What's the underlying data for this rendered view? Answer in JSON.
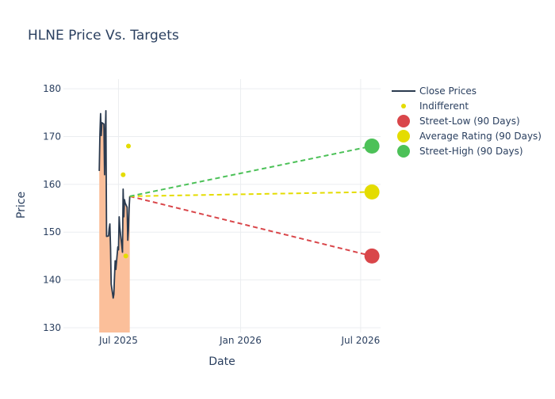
{
  "chart_data": {
    "type": "line",
    "title": "HLNE Price Vs. Targets",
    "xlabel": "Date",
    "ylabel": "Price",
    "xlim": [
      "2025-04-09",
      "2026-07-31"
    ],
    "ylim": [
      129,
      182
    ],
    "x_ticks": [
      {
        "date": "2025-07-01",
        "label": "Jul 2025"
      },
      {
        "date": "2026-01-01",
        "label": "Jan 2026"
      },
      {
        "date": "2026-07-01",
        "label": "Jul 2026"
      }
    ],
    "y_ticks": [
      130,
      140,
      150,
      160,
      170,
      180
    ],
    "grid": true,
    "legend_position": "top-right",
    "series": [
      {
        "name": "Close Prices",
        "kind": "line-area",
        "color": "#2a3a4f",
        "fill": "#fbbf9a",
        "points": [
          [
            "2025-06-02",
            162.8
          ],
          [
            "2025-06-03",
            170.5
          ],
          [
            "2025-06-04",
            174.8
          ],
          [
            "2025-06-05",
            170.2
          ],
          [
            "2025-06-06",
            172.9
          ],
          [
            "2025-06-09",
            172.6
          ],
          [
            "2025-06-10",
            162.0
          ],
          [
            "2025-06-11",
            170.3
          ],
          [
            "2025-06-12",
            175.4
          ],
          [
            "2025-06-13",
            149.1
          ],
          [
            "2025-06-16",
            149.2
          ],
          [
            "2025-06-17",
            150.8
          ],
          [
            "2025-06-18",
            151.7
          ],
          [
            "2025-06-19",
            146.8
          ],
          [
            "2025-06-20",
            139.1
          ],
          [
            "2025-06-23",
            136.2
          ],
          [
            "2025-06-24",
            137.0
          ],
          [
            "2025-06-25",
            140.7
          ],
          [
            "2025-06-26",
            144.0
          ],
          [
            "2025-06-27",
            142.2
          ],
          [
            "2025-06-30",
            146.9
          ],
          [
            "2025-07-01",
            146.3
          ],
          [
            "2025-07-02",
            153.2
          ],
          [
            "2025-07-03",
            150.9
          ],
          [
            "2025-07-07",
            145.8
          ],
          [
            "2025-07-08",
            159.0
          ],
          [
            "2025-07-09",
            153.2
          ],
          [
            "2025-07-10",
            156.8
          ],
          [
            "2025-07-11",
            156.1
          ],
          [
            "2025-07-14",
            155.2
          ],
          [
            "2025-07-15",
            148.3
          ],
          [
            "2025-07-16",
            150.5
          ],
          [
            "2025-07-17",
            155.0
          ],
          [
            "2025-07-18",
            157.5
          ]
        ]
      },
      {
        "name": "Indifferent",
        "kind": "markers",
        "color": "#e4dc00",
        "points": [
          [
            "2025-07-08",
            162.0
          ],
          [
            "2025-07-12",
            145.0
          ],
          [
            "2025-07-16",
            168.0
          ]
        ]
      },
      {
        "name": "Street-Low (90 Days)",
        "kind": "target",
        "color": "#d9464a",
        "points": [
          [
            "2025-07-18",
            157.5
          ],
          [
            "2026-07-18",
            145.0
          ]
        ]
      },
      {
        "name": "Average Rating (90 Days)",
        "kind": "target",
        "color": "#e4dc00",
        "points": [
          [
            "2025-07-18",
            157.5
          ],
          [
            "2026-07-18",
            158.4
          ]
        ]
      },
      {
        "name": "Street-High (90 Days)",
        "kind": "target",
        "color": "#4cc158",
        "points": [
          [
            "2025-07-18",
            157.5
          ],
          [
            "2026-07-18",
            168.0
          ]
        ]
      }
    ]
  }
}
